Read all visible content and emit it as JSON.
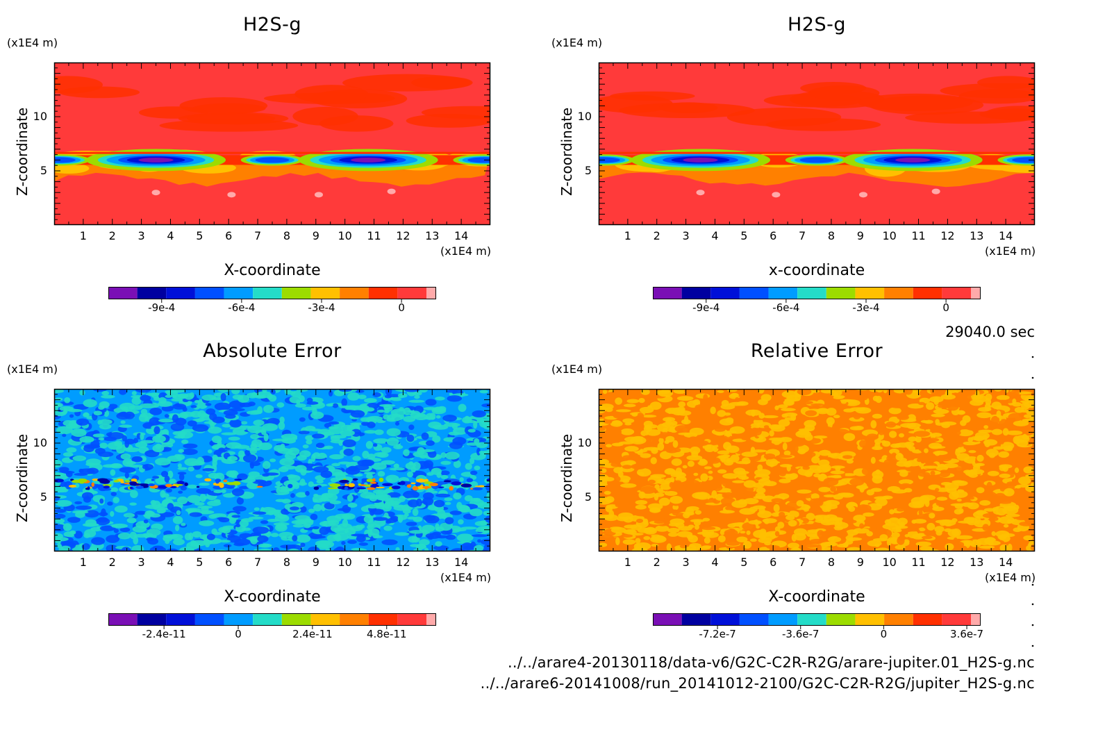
{
  "footer": {
    "time": "29040.0 sec",
    "file1": "../../arare4-20130118/data-v6/G2C-C2R-R2G/arare-jupiter.01_H2S-g.nc",
    "file2": "../../arare6-20141008/run_20141012-2100/G2C-C2R-R2G/jupiter_H2S-g.nc"
  },
  "colors": {
    "palette": [
      "#7a0fb5",
      "#0000a0",
      "#0010d8",
      "#0050ff",
      "#009cff",
      "#24dcc8",
      "#9cdc00",
      "#ffc000",
      "#ff8000",
      "#ff3000",
      "#ff3a3a",
      "#ffaaaa"
    ]
  },
  "chart_data": [
    {
      "type": "heatmap",
      "title": "H2S-g",
      "xlabel": "X-coordinate",
      "ylabel": "Z-coordinate",
      "x_unit": "(x1E4 m)",
      "y_unit": "(x1E4 m)",
      "xlim": [
        0,
        15
      ],
      "ylim": [
        0,
        15
      ],
      "x_ticks": [
        "1",
        "2",
        "3",
        "4",
        "5",
        "6",
        "7",
        "8",
        "9",
        "10",
        "11",
        "12",
        "13",
        "14"
      ],
      "y_ticks": [
        "5",
        "10"
      ],
      "colorbar_ticks": [
        {
          "value": -0.0009,
          "label": "-9e-4"
        },
        {
          "value": -0.0006,
          "label": "-6e-4"
        },
        {
          "value": -0.0003,
          "label": "-3e-4"
        },
        {
          "value": 0,
          "label": "0"
        }
      ],
      "colorbar_range": [
        -0.0011,
        0.00013
      ],
      "pattern": "band",
      "band_z": 6.0,
      "background_color": "#ff3a3a"
    },
    {
      "type": "heatmap",
      "title": "H2S-g",
      "xlabel": "x-coordinate",
      "ylabel": "Z-coordinate",
      "x_unit": "(x1E4 m)",
      "y_unit": "(x1E4 m)",
      "xlim": [
        0,
        15
      ],
      "ylim": [
        0,
        15
      ],
      "x_ticks": [
        "1",
        "2",
        "3",
        "4",
        "5",
        "6",
        "7",
        "8",
        "9",
        "10",
        "11",
        "12",
        "13",
        "14"
      ],
      "y_ticks": [
        "5",
        "10"
      ],
      "colorbar_ticks": [
        {
          "value": -0.0009,
          "label": "-9e-4"
        },
        {
          "value": -0.0006,
          "label": "-6e-4"
        },
        {
          "value": -0.0003,
          "label": "-3e-4"
        },
        {
          "value": 0,
          "label": "0"
        }
      ],
      "colorbar_range": [
        -0.0011,
        0.00013
      ],
      "pattern": "band",
      "band_z": 6.0,
      "background_color": "#ff3a3a"
    },
    {
      "type": "heatmap",
      "title": "Absolute Error",
      "xlabel": "X-coordinate",
      "ylabel": "Z-coordinate",
      "x_unit": "(x1E4 m)",
      "y_unit": "(x1E4 m)",
      "xlim": [
        0,
        15
      ],
      "ylim": [
        0,
        15
      ],
      "x_ticks": [
        "1",
        "2",
        "3",
        "4",
        "5",
        "6",
        "7",
        "8",
        "9",
        "10",
        "11",
        "12",
        "13",
        "14"
      ],
      "y_ticks": [
        "5",
        "10"
      ],
      "colorbar_ticks": [
        {
          "value": -2.4e-11,
          "label": "-2.4e-11"
        },
        {
          "value": 0,
          "label": "0"
        },
        {
          "value": 2.4e-11,
          "label": "2.4e-11"
        },
        {
          "value": 4.8e-11,
          "label": "4.8e-11"
        }
      ],
      "colorbar_range": [
        -4.2e-11,
        6.4e-11
      ],
      "pattern": "noise-with-band",
      "band_z": 6.2,
      "background_color": "#009cff"
    },
    {
      "type": "heatmap",
      "title": "Relative Error",
      "xlabel": "X-coordinate",
      "ylabel": "Z-coordinate",
      "x_unit": "(x1E4 m)",
      "y_unit": "(x1E4 m)",
      "xlim": [
        0,
        15
      ],
      "ylim": [
        0,
        15
      ],
      "x_ticks": [
        "1",
        "2",
        "3",
        "4",
        "5",
        "6",
        "7",
        "8",
        "9",
        "10",
        "11",
        "12",
        "13",
        "14"
      ],
      "y_ticks": [
        "5",
        "10"
      ],
      "colorbar_ticks": [
        {
          "value": -7.2e-07,
          "label": "-7.2e-7"
        },
        {
          "value": -3.6e-07,
          "label": "-3.6e-7"
        },
        {
          "value": 0,
          "label": "0"
        },
        {
          "value": 3.6e-07,
          "label": "3.6e-7"
        }
      ],
      "colorbar_range": [
        -1e-06,
        4.2e-07
      ],
      "pattern": "noise",
      "background_color": "#ff8000"
    }
  ]
}
